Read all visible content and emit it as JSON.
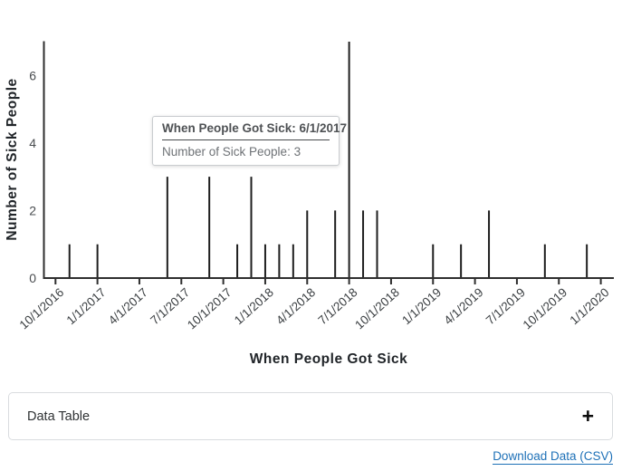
{
  "chart_data": {
    "type": "bar",
    "subtype": "epi-curve-thin-bars",
    "title": "",
    "xlabel": "When People Got Sick",
    "ylabel": "Number of Sick People",
    "x_tick_labels": [
      "10/1/2016",
      "1/1/2017",
      "4/1/2017",
      "7/1/2017",
      "10/1/2017",
      "1/1/2018",
      "4/1/2018",
      "7/1/2018",
      "10/1/2018",
      "1/1/2019",
      "4/1/2019",
      "7/1/2019",
      "10/1/2019",
      "1/1/2020"
    ],
    "y_ticks": [
      0,
      2,
      4,
      6
    ],
    "ylim": [
      0,
      7
    ],
    "x_unit": "month",
    "grid": "off",
    "legend": "none",
    "points": [
      {
        "x": "11/1/2016",
        "y": 1
      },
      {
        "x": "1/1/2017",
        "y": 1
      },
      {
        "x": "6/1/2017",
        "y": 3
      },
      {
        "x": "9/1/2017",
        "y": 3
      },
      {
        "x": "11/1/2017",
        "y": 1
      },
      {
        "x": "12/1/2017",
        "y": 3
      },
      {
        "x": "1/1/2018",
        "y": 1
      },
      {
        "x": "2/1/2018",
        "y": 1
      },
      {
        "x": "3/1/2018",
        "y": 1
      },
      {
        "x": "4/1/2018",
        "y": 2
      },
      {
        "x": "6/1/2018",
        "y": 2
      },
      {
        "x": "7/1/2018",
        "y": 7
      },
      {
        "x": "8/1/2018",
        "y": 2
      },
      {
        "x": "9/1/2018",
        "y": 2
      },
      {
        "x": "1/1/2019",
        "y": 1
      },
      {
        "x": "3/1/2019",
        "y": 1
      },
      {
        "x": "5/1/2019",
        "y": 2
      },
      {
        "x": "9/1/2019",
        "y": 1
      },
      {
        "x": "12/1/2019",
        "y": 1
      }
    ],
    "bar_color": "#1e1e1e",
    "axis_color": "#2e2e2e"
  },
  "tooltip": {
    "title": "When People Got Sick: 6/1/2017",
    "body": "Number of Sick People: 3"
  },
  "data_table": {
    "label": "Data Table",
    "toggle_icon": "+"
  },
  "download": {
    "label": "Download Data (CSV)",
    "link_color": "#1d70b7"
  }
}
